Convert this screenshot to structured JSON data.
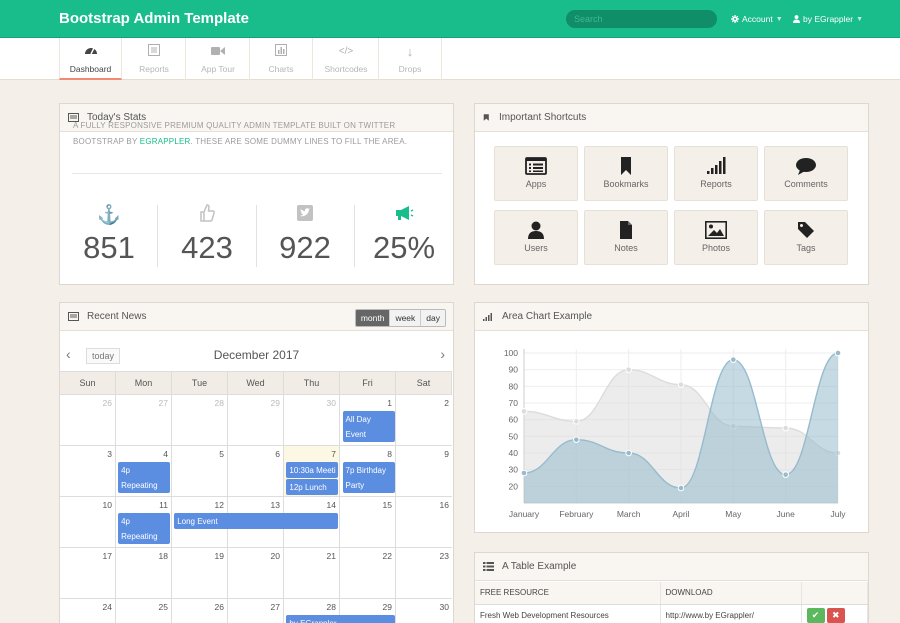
{
  "header": {
    "brand": "Bootstrap Admin Template",
    "search_placeholder": "Search",
    "account_label": "Account",
    "user_label": "by EGrappler"
  },
  "nav": [
    {
      "label": "Dashboard",
      "icon": "dashboard-icon",
      "active": true
    },
    {
      "label": "Reports",
      "icon": "reports-icon",
      "active": false
    },
    {
      "label": "App Tour",
      "icon": "video-camera-icon",
      "active": false
    },
    {
      "label": "Charts",
      "icon": "bar-chart-icon",
      "active": false
    },
    {
      "label": "Shortcodes",
      "icon": "code-icon",
      "active": false
    },
    {
      "label": "Drops",
      "icon": "arrow-down-icon",
      "active": false
    }
  ],
  "stats": {
    "title": "Today's Stats",
    "intro_pre": "A fully responsive premium quality admin template built on Twitter Bootstrap by ",
    "intro_link": "EGrappler",
    "intro_post": ". These are some dummy lines to fill the area.",
    "items": [
      {
        "icon": "anchor-icon",
        "value": "851"
      },
      {
        "icon": "thumbs-up-icon",
        "value": "423"
      },
      {
        "icon": "twitter-icon",
        "value": "922"
      },
      {
        "icon": "bullhorn-icon",
        "value": "25%"
      }
    ]
  },
  "shortcuts": {
    "title": "Important Shortcuts",
    "items": [
      {
        "label": "Apps",
        "icon": "list-icon"
      },
      {
        "label": "Bookmarks",
        "icon": "bookmark-icon"
      },
      {
        "label": "Reports",
        "icon": "signal-icon"
      },
      {
        "label": "Comments",
        "icon": "comment-icon"
      },
      {
        "label": "Users",
        "icon": "user-icon"
      },
      {
        "label": "Notes",
        "icon": "file-icon"
      },
      {
        "label": "Photos",
        "icon": "picture-icon"
      },
      {
        "label": "Tags",
        "icon": "tag-icon"
      }
    ]
  },
  "news": {
    "title": "Recent News",
    "view_buttons": [
      "month",
      "week",
      "day"
    ],
    "active_view": "month",
    "today_label": "today",
    "month_title": "December 2017",
    "weekdays": [
      "Sun",
      "Mon",
      "Tue",
      "Wed",
      "Thu",
      "Fri",
      "Sat"
    ],
    "weeks": [
      [
        {
          "d": "26",
          "o": true
        },
        {
          "d": "27",
          "o": true
        },
        {
          "d": "28",
          "o": true
        },
        {
          "d": "29",
          "o": true
        },
        {
          "d": "30",
          "o": true
        },
        {
          "d": "1"
        },
        {
          "d": "2"
        }
      ],
      [
        {
          "d": "3"
        },
        {
          "d": "4"
        },
        {
          "d": "5"
        },
        {
          "d": "6"
        },
        {
          "d": "7",
          "t": true
        },
        {
          "d": "8"
        },
        {
          "d": "9"
        }
      ],
      [
        {
          "d": "10"
        },
        {
          "d": "11"
        },
        {
          "d": "12"
        },
        {
          "d": "13"
        },
        {
          "d": "14"
        },
        {
          "d": "15"
        },
        {
          "d": "16"
        }
      ],
      [
        {
          "d": "17"
        },
        {
          "d": "18"
        },
        {
          "d": "19"
        },
        {
          "d": "20"
        },
        {
          "d": "21"
        },
        {
          "d": "22"
        },
        {
          "d": "23"
        }
      ],
      [
        {
          "d": "24"
        },
        {
          "d": "25"
        },
        {
          "d": "26"
        },
        {
          "d": "27"
        },
        {
          "d": "28"
        },
        {
          "d": "29"
        },
        {
          "d": "30"
        }
      ]
    ],
    "events": {
      "allday": "All Day Event",
      "repeat1": "4p Repeating Event",
      "meeting": "10:30a Meeti",
      "lunch": "12p Lunch",
      "birthday": "7p Birthday Party",
      "repeat2": "4p Repeating Event",
      "long": "Long Event",
      "egrappler": "by EGrappler"
    },
    "event_color": "#5b8de0"
  },
  "area_chart": {
    "title": "Area Chart Example"
  },
  "chart_data": {
    "type": "area",
    "categories": [
      "January",
      "February",
      "March",
      "April",
      "May",
      "June",
      "July"
    ],
    "series": [
      {
        "values": [
          65,
          59,
          90,
          81,
          56,
          55,
          40
        ],
        "color": "#dcdcdc"
      },
      {
        "values": [
          28,
          48,
          40,
          19,
          96,
          27,
          100
        ],
        "color": "#97bbcd"
      }
    ],
    "ylim": [
      10,
      100
    ],
    "yticks": [
      20,
      30,
      40,
      50,
      60,
      70,
      80,
      90,
      100
    ],
    "grid": true
  },
  "table": {
    "title": "A Table Example",
    "headers": [
      "FREE RESOURCE",
      "DOWNLOAD"
    ],
    "rows": [
      {
        "resource": "Fresh Web Development Resources",
        "download": "http://www.by EGrappler/"
      }
    ]
  }
}
